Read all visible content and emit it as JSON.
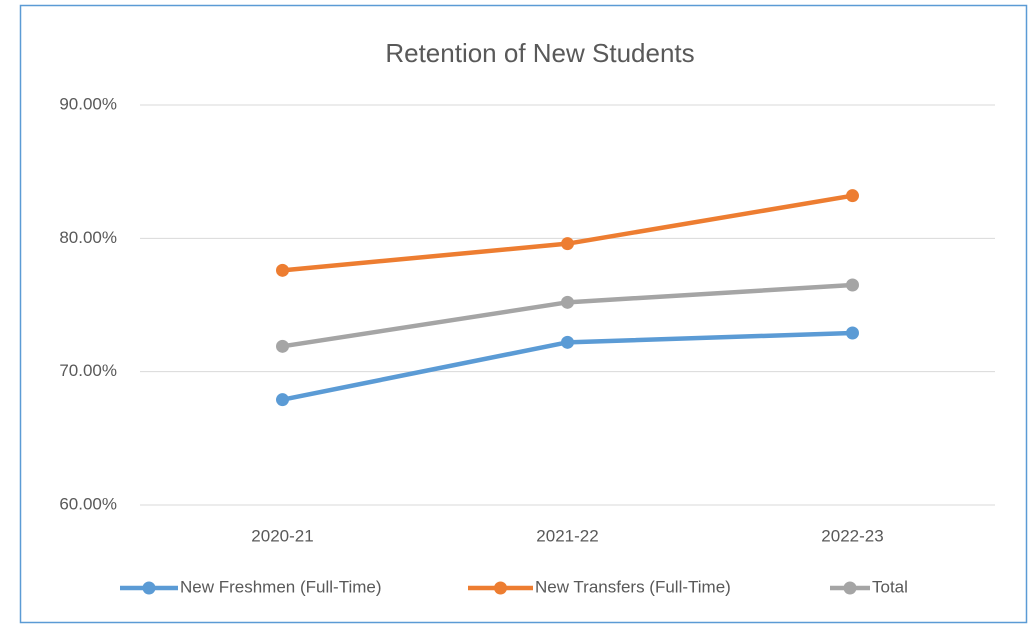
{
  "chart_data": {
    "type": "line",
    "title": "Retention of New Students",
    "categories": [
      "2020-21",
      "2021-22",
      "2022-23"
    ],
    "series": [
      {
        "name": "New Freshmen (Full-Time)",
        "color": "#5b9bd5",
        "values": [
          67.9,
          72.2,
          72.9
        ]
      },
      {
        "name": "New Transfers (Full-Time)",
        "color": "#ed7d31",
        "values": [
          77.6,
          79.6,
          83.2
        ]
      },
      {
        "name": "Total",
        "color": "#a5a5a5",
        "values": [
          71.9,
          75.2,
          76.5
        ]
      }
    ],
    "ylim": [
      60,
      90
    ],
    "yticks": [
      {
        "value": 60,
        "label": "60.00%"
      },
      {
        "value": 70,
        "label": "70.00%"
      },
      {
        "value": 80,
        "label": "80.00%"
      },
      {
        "value": 90,
        "label": "90.00%"
      }
    ],
    "grid": true,
    "legend": "bottom"
  }
}
